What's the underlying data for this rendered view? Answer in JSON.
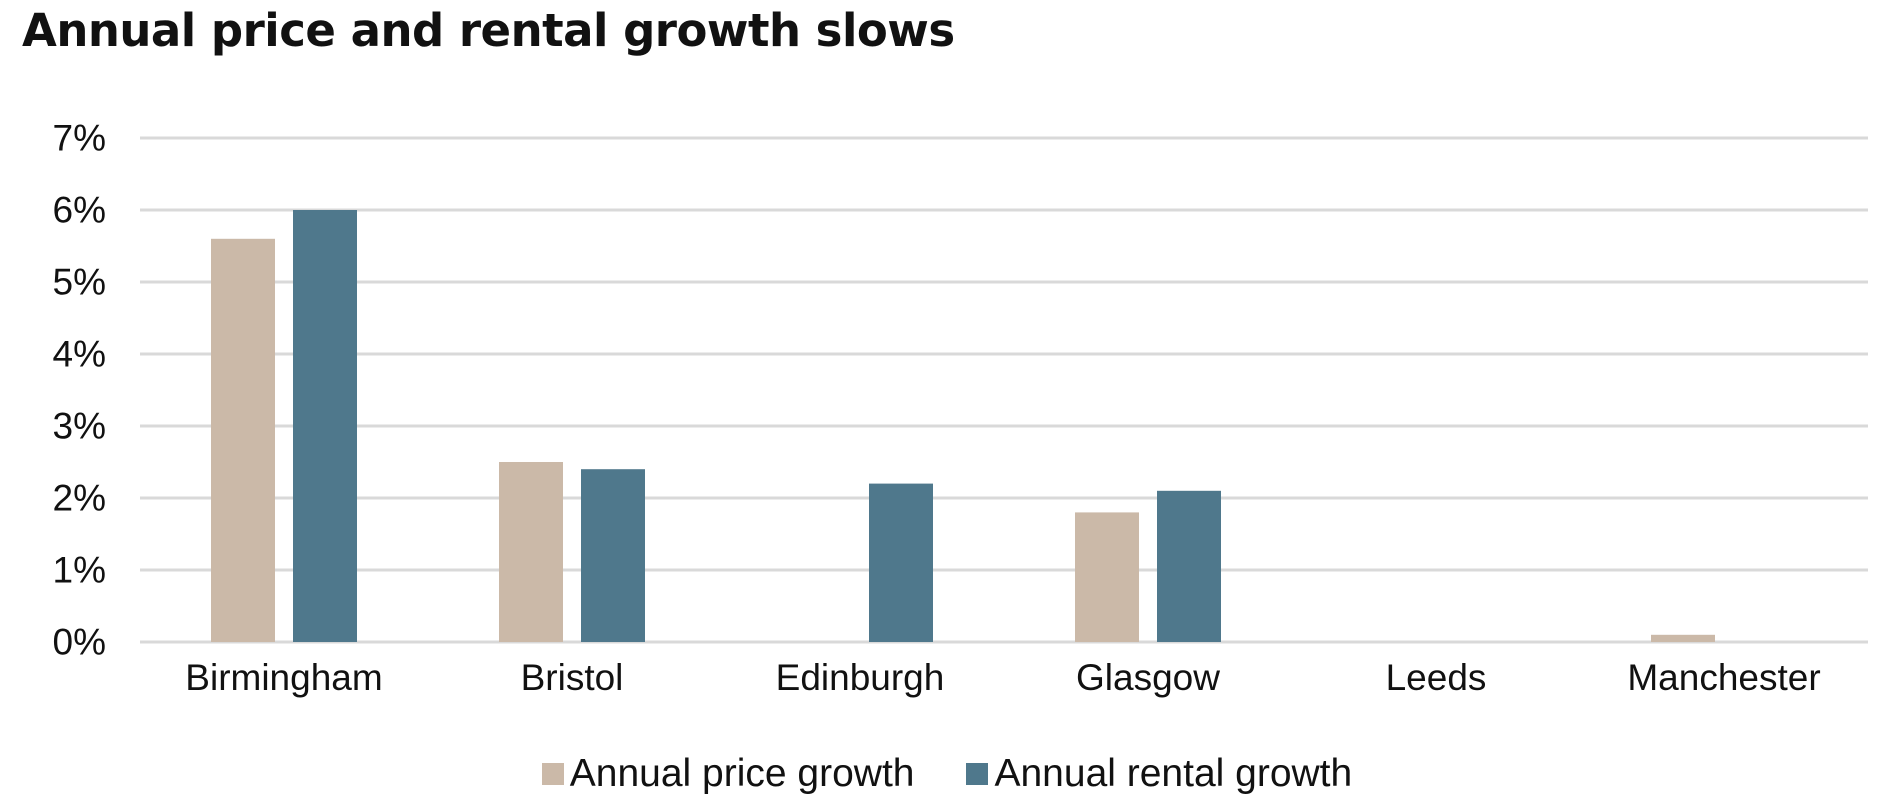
{
  "chart_data": {
    "type": "bar",
    "title": "Annual price and rental growth slows",
    "categories": [
      "Birmingham",
      "Bristol",
      "Edinburgh",
      "Glasgow",
      "Leeds",
      "Manchester"
    ],
    "series": [
      {
        "name": "Annual price growth",
        "values": [
          5.6,
          2.5,
          0.0,
          1.8,
          0.0,
          0.1
        ],
        "color": "#cbb9a8"
      },
      {
        "name": "Annual rental growth",
        "values": [
          6.0,
          2.4,
          2.2,
          2.1,
          0.0,
          0.0
        ],
        "color": "#4f788c"
      }
    ],
    "ylim": [
      0,
      7
    ],
    "yticks": [
      0,
      1,
      2,
      3,
      4,
      5,
      6,
      7
    ],
    "ytick_labels": [
      "0%",
      "1%",
      "2%",
      "3%",
      "4%",
      "5%",
      "6%",
      "7%"
    ],
    "xlabel": "",
    "ylabel": "",
    "grid": true,
    "legend_position": "bottom-center",
    "gridline_color": "#d9d9d9"
  }
}
